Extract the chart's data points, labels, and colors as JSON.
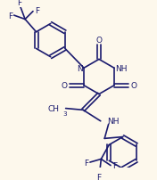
{
  "bg_color": "#fdf8ec",
  "line_color": "#1a1a6e",
  "text_color": "#1a1a6e",
  "lw": 1.2,
  "fs": 6.5,
  "figsize": [
    1.76,
    2.03
  ],
  "dpi": 100,
  "xlim": [
    0,
    176
  ],
  "ylim": [
    0,
    203
  ]
}
